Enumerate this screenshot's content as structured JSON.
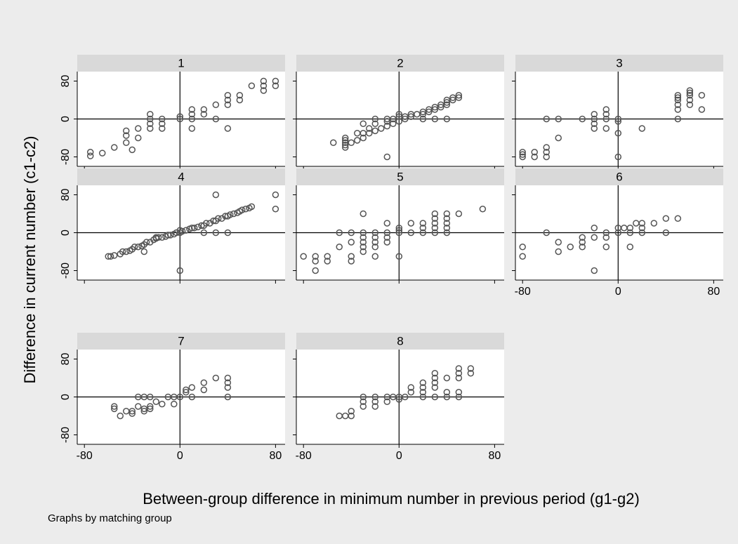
{
  "chart_data": {
    "type": "scatter",
    "xlabel": "Between-group difference in minimum number in previous period (g1-g2)",
    "ylabel": "Difference in current number (c1-c2)",
    "note": "Graphs by matching group",
    "xlim": [
      -86,
      88
    ],
    "ylim": [
      -100,
      100
    ],
    "xticks": [
      -80,
      0,
      80
    ],
    "yticks": [
      -80,
      0,
      80
    ],
    "marker_color": "#555555",
    "header_color": "#d9d9d9",
    "panels": [
      {
        "title": "1",
        "x": [
          -75,
          -75,
          -65,
          -55,
          -45,
          -45,
          -45,
          -40,
          -35,
          -35,
          -25,
          -25,
          -25,
          -25,
          -15,
          -15,
          -15,
          0,
          0,
          10,
          10,
          10,
          10,
          20,
          20,
          30,
          30,
          40,
          40,
          40,
          40,
          50,
          50,
          60,
          70,
          70,
          70,
          80,
          80
        ],
        "y": [
          -70,
          -78,
          -72,
          -60,
          -50,
          -25,
          -35,
          -65,
          -40,
          -20,
          -20,
          -10,
          0,
          10,
          -20,
          -10,
          0,
          0,
          5,
          -20,
          0,
          10,
          20,
          10,
          20,
          0,
          30,
          -20,
          30,
          40,
          50,
          40,
          50,
          70,
          60,
          70,
          80,
          70,
          80
        ]
      },
      {
        "title": "2",
        "x": [
          -55,
          -45,
          -45,
          -45,
          -45,
          -45,
          -40,
          -35,
          -30,
          -30,
          -25,
          -25,
          -20,
          -20,
          -15,
          -10,
          -10,
          -10,
          -10,
          -5,
          -5,
          0,
          0,
          0,
          5,
          5,
          10,
          10,
          15,
          20,
          20,
          20,
          25,
          25,
          30,
          30,
          30,
          35,
          35,
          40,
          40,
          40,
          40,
          45,
          45,
          50,
          50,
          -30,
          -20,
          -35
        ],
        "y": [
          -50,
          -40,
          -45,
          -50,
          -55,
          -60,
          -50,
          -45,
          -40,
          -30,
          -30,
          -20,
          -25,
          -10,
          -20,
          -15,
          -5,
          0,
          -80,
          -10,
          0,
          -5,
          5,
          10,
          0,
          5,
          5,
          10,
          10,
          10,
          15,
          0,
          15,
          20,
          20,
          25,
          0,
          25,
          30,
          30,
          35,
          40,
          0,
          40,
          45,
          45,
          50,
          -10,
          0,
          -30
        ]
      },
      {
        "title": "3",
        "x": [
          -80,
          -80,
          -80,
          -70,
          -70,
          -60,
          -60,
          -60,
          -60,
          -50,
          -50,
          -20,
          -20,
          -20,
          -20,
          -10,
          -10,
          -10,
          -10,
          0,
          0,
          0,
          0,
          20,
          50,
          50,
          50,
          50,
          50,
          50,
          60,
          60,
          60,
          60,
          60,
          70,
          70,
          -30
        ],
        "y": [
          -70,
          -80,
          -75,
          -70,
          -80,
          -60,
          -70,
          -80,
          0,
          -40,
          0,
          -20,
          -10,
          0,
          10,
          0,
          10,
          20,
          -20,
          0,
          -30,
          -80,
          -5,
          -20,
          0,
          20,
          30,
          40,
          45,
          50,
          30,
          40,
          50,
          55,
          60,
          50,
          20,
          0
        ]
      },
      {
        "title": "4",
        "x": [
          -60,
          -58,
          -55,
          -50,
          -48,
          -45,
          -42,
          -40,
          -38,
          -35,
          -32,
          -30,
          -28,
          -25,
          -22,
          -20,
          -18,
          -15,
          -12,
          -10,
          -8,
          -5,
          -3,
          0,
          0,
          2,
          5,
          8,
          10,
          12,
          15,
          18,
          20,
          22,
          25,
          28,
          30,
          32,
          35,
          38,
          40,
          42,
          45,
          48,
          50,
          52,
          55,
          58,
          60,
          0,
          80,
          80,
          30,
          40,
          20,
          30,
          -30,
          -20
        ],
        "y": [
          -50,
          -50,
          -48,
          -45,
          -40,
          -40,
          -38,
          -35,
          -30,
          -30,
          -28,
          -25,
          -20,
          -20,
          -15,
          -12,
          -10,
          -10,
          -8,
          -5,
          -5,
          -3,
          0,
          0,
          5,
          3,
          5,
          8,
          10,
          10,
          12,
          15,
          15,
          20,
          20,
          25,
          25,
          30,
          30,
          35,
          35,
          38,
          40,
          42,
          45,
          48,
          50,
          52,
          55,
          -80,
          80,
          50,
          80,
          0,
          0,
          0,
          -40,
          -10
        ]
      },
      {
        "title": "5",
        "x": [
          -80,
          -70,
          -70,
          -70,
          -60,
          -60,
          -50,
          -50,
          -40,
          -40,
          -40,
          -40,
          -30,
          -30,
          -30,
          -30,
          -30,
          -20,
          -20,
          -20,
          -20,
          -20,
          -10,
          -10,
          -10,
          -30,
          -10,
          0,
          0,
          0,
          0,
          10,
          10,
          20,
          20,
          20,
          30,
          30,
          30,
          30,
          30,
          40,
          40,
          40,
          40,
          40,
          50,
          70
        ],
        "y": [
          -50,
          -50,
          -60,
          -80,
          -50,
          -60,
          -30,
          0,
          -50,
          -60,
          0,
          -20,
          -40,
          0,
          -10,
          -20,
          -30,
          -20,
          0,
          -10,
          -30,
          -50,
          0,
          -10,
          -20,
          40,
          20,
          0,
          10,
          -50,
          5,
          0,
          20,
          0,
          10,
          20,
          10,
          20,
          30,
          40,
          0,
          0,
          10,
          20,
          30,
          40,
          40,
          50
        ]
      },
      {
        "title": "6",
        "x": [
          -80,
          -80,
          -60,
          -50,
          -50,
          -40,
          -30,
          -30,
          -30,
          -20,
          -20,
          -20,
          -10,
          -10,
          -10,
          0,
          0,
          5,
          10,
          10,
          10,
          15,
          20,
          20,
          20,
          30,
          40,
          40,
          50
        ],
        "y": [
          -30,
          -50,
          0,
          -20,
          -40,
          -30,
          -10,
          -20,
          -30,
          10,
          -10,
          -80,
          -10,
          0,
          -30,
          0,
          10,
          10,
          10,
          0,
          -30,
          20,
          20,
          10,
          0,
          20,
          30,
          0,
          30
        ]
      },
      {
        "title": "7",
        "x": [
          -55,
          -55,
          -50,
          -45,
          -40,
          -40,
          -35,
          -35,
          -30,
          -30,
          -30,
          -25,
          -25,
          -25,
          -20,
          -15,
          -10,
          -5,
          -5,
          0,
          5,
          5,
          10,
          10,
          20,
          20,
          30,
          40,
          40,
          40,
          40
        ],
        "y": [
          -20,
          -25,
          -40,
          -30,
          -35,
          -30,
          0,
          -20,
          0,
          -25,
          -30,
          0,
          -25,
          -20,
          -10,
          -15,
          0,
          -15,
          0,
          0,
          10,
          15,
          20,
          0,
          15,
          30,
          40,
          0,
          20,
          30,
          40
        ]
      },
      {
        "title": "8",
        "x": [
          -50,
          -45,
          -40,
          -40,
          -30,
          -30,
          -30,
          -20,
          -20,
          -20,
          -10,
          -10,
          -5,
          0,
          0,
          5,
          10,
          10,
          20,
          20,
          20,
          20,
          30,
          30,
          30,
          30,
          30,
          40,
          40,
          40,
          50,
          50,
          50,
          50,
          50,
          60,
          60
        ],
        "y": [
          -40,
          -40,
          -40,
          -30,
          -10,
          -20,
          0,
          0,
          -10,
          -20,
          0,
          -10,
          0,
          0,
          -5,
          0,
          10,
          20,
          0,
          10,
          20,
          30,
          0,
          20,
          30,
          40,
          50,
          0,
          10,
          40,
          10,
          0,
          40,
          50,
          60,
          50,
          60
        ]
      }
    ]
  }
}
